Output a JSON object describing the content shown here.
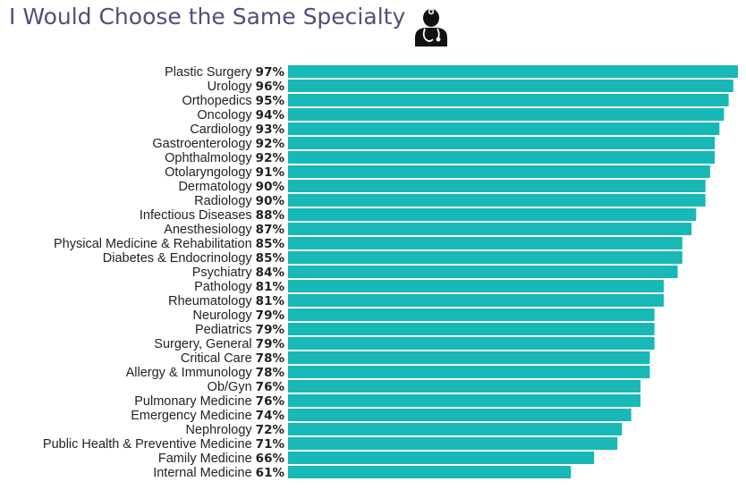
{
  "header": {
    "title": "I Would Choose the Same Specialty",
    "icon": "doctor-icon"
  },
  "colors": {
    "bar": "#17b8b5",
    "title": "#5b4a78",
    "text": "#222222"
  },
  "chart_data": {
    "type": "bar",
    "orientation": "horizontal",
    "title": "I Would Choose the Same Specialty",
    "xlabel": "",
    "ylabel": "",
    "value_suffix": "%",
    "xlim": [
      0,
      100
    ],
    "categories": [
      "Plastic Surgery",
      "Urology",
      "Orthopedics",
      "Oncology",
      "Cardiology",
      "Gastroenterology",
      "Ophthalmology",
      "Otolaryngology",
      "Dermatology",
      "Radiology",
      "Infectious Diseases",
      "Anesthesiology",
      "Physical Medicine & Rehabilitation",
      "Diabetes & Endocrinology",
      "Psychiatry",
      "Pathology",
      "Rheumatology",
      "Neurology",
      "Pediatrics",
      "Surgery, General",
      "Critical Care",
      "Allergy & Immunology",
      "Ob/Gyn",
      "Pulmonary Medicine",
      "Emergency Medicine",
      "Nephrology",
      "Public Health & Preventive Medicine",
      "Family Medicine",
      "Internal Medicine"
    ],
    "values": [
      97,
      96,
      95,
      94,
      93,
      92,
      92,
      91,
      90,
      90,
      88,
      87,
      85,
      85,
      84,
      81,
      81,
      79,
      79,
      79,
      78,
      78,
      76,
      76,
      74,
      72,
      71,
      66,
      61
    ],
    "value_labels": [
      "97%",
      "96%",
      "95%",
      "94%",
      "93%",
      "92%",
      "92%",
      "91%",
      "90%",
      "90%",
      "88%",
      "87%",
      "85%",
      "85%",
      "84%",
      "81%",
      "81%",
      "79%",
      "79%",
      "79%",
      "78%",
      "78%",
      "76%",
      "76%",
      "74%",
      "72%",
      "71%",
      "66%",
      "61%"
    ]
  }
}
